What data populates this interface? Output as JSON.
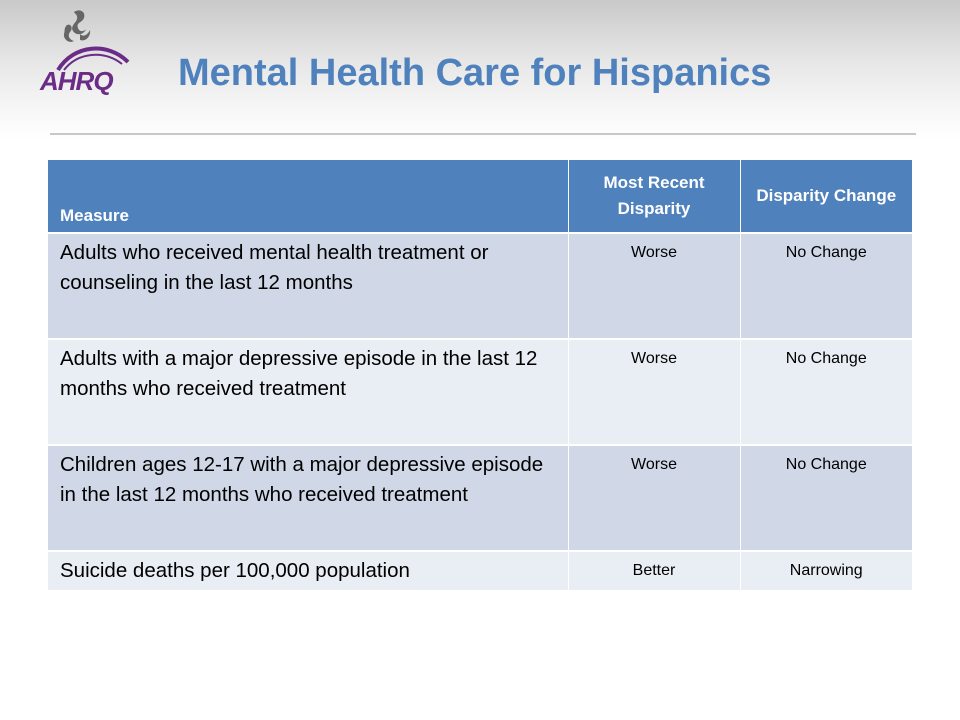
{
  "header": {
    "title": "Mental Health Care for Hispanics",
    "logo_text": "AHRQ",
    "logo_color": "#6a2c86",
    "title_color": "#4f81bd"
  },
  "table": {
    "columns": [
      "Measure",
      "Most Recent Disparity",
      "Disparity Change"
    ],
    "rows": [
      {
        "measure": "Adults who received mental health treatment or counseling in the last 12 months",
        "recent": "Worse",
        "change": "No Change"
      },
      {
        "measure": "Adults with a major depressive episode in the last 12 months who received treatment",
        "recent": "Worse",
        "change": "No Change"
      },
      {
        "measure": "Children ages 12-17 with a major depressive episode in the last 12 months who received treatment",
        "recent": "Worse",
        "change": "No Change"
      },
      {
        "measure": "Suicide deaths per 100,000 population",
        "recent": "Better",
        "change": "Narrowing"
      }
    ],
    "header_color": "#4f81bd",
    "row_colors": [
      "#d0d8e8",
      "#e9edf4"
    ]
  }
}
